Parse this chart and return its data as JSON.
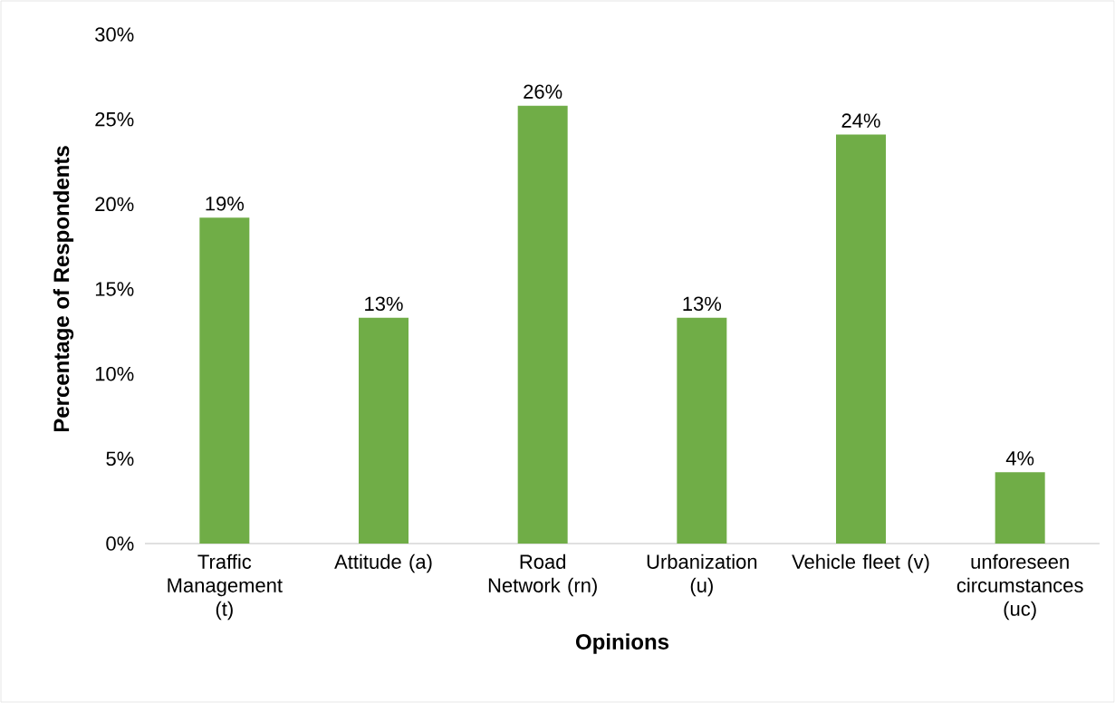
{
  "chart_data": {
    "type": "bar",
    "xlabel": "Opinions",
    "ylabel": "Percentage of Respondents",
    "categories": [
      "Traffic Management (t)",
      "Attitude (a)",
      "Road Network (rn)",
      "Urbanization (u)",
      "Vehicle fleet (v)",
      "unforeseen circumstances (uc)"
    ],
    "values": [
      19.2,
      13.3,
      25.8,
      13.3,
      24.1,
      4.2
    ],
    "value_labels": [
      "19%",
      "13%",
      "26%",
      "13%",
      "24%",
      "4%"
    ],
    "color": "#70ad47",
    "ylim": [
      0,
      30
    ],
    "yticks": [
      {
        "value": 0,
        "label": "0%"
      },
      {
        "value": 5,
        "label": "5%"
      },
      {
        "value": 10,
        "label": "10%"
      },
      {
        "value": 15,
        "label": "15%"
      },
      {
        "value": 20,
        "label": "20%"
      },
      {
        "value": 25,
        "label": "25%"
      },
      {
        "value": 30,
        "label": "30%"
      }
    ]
  }
}
